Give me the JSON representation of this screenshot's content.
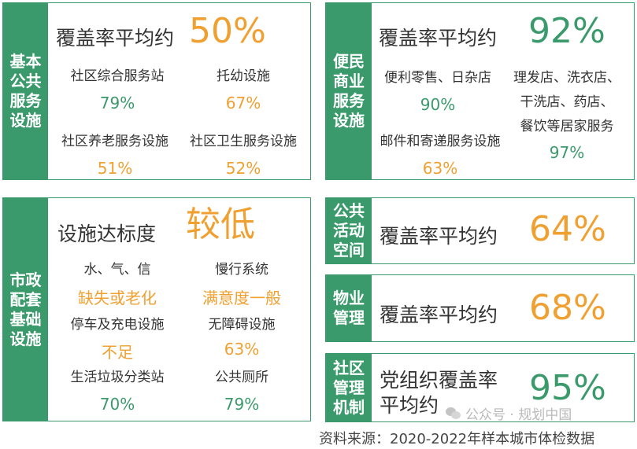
{
  "colors": {
    "green": "#3a9a6b",
    "orange": "#f0a030",
    "text": "#333333"
  },
  "basic": {
    "side": [
      "基本",
      "公共",
      "服务",
      "设施"
    ],
    "title": "覆盖率平均约",
    "value": "50%",
    "items": [
      {
        "label": "社区综合服务站",
        "value": "79%"
      },
      {
        "label": "托幼设施",
        "value": "67%"
      },
      {
        "label": "社区养老服务设施",
        "value": "51%"
      },
      {
        "label": "社区卫生服务设施",
        "value": "52%"
      }
    ]
  },
  "commerce": {
    "side": [
      "便民",
      "商业",
      "服务",
      "设施"
    ],
    "title": "覆盖率平均约",
    "value": "92%",
    "items": [
      {
        "label": "便利零售、日杂店",
        "value": "90%"
      },
      {
        "label_lines": [
          "理发店、洗衣店、",
          "干洗店、药店、",
          "餐饮等居家服务"
        ],
        "value": "97%"
      },
      {
        "label": "邮件和寄递服务设施",
        "value": "63%"
      }
    ]
  },
  "municipal": {
    "side": [
      "市政",
      "配套",
      "基础",
      "设施"
    ],
    "title": "设施达标度",
    "value": "较低",
    "items": [
      {
        "label": "水、气、信",
        "value": "缺失或老化"
      },
      {
        "label": "慢行系统",
        "value": "满意度一般"
      },
      {
        "label": "停车及充电设施",
        "value": "不足"
      },
      {
        "label": "无障碍设施",
        "value": "63%"
      },
      {
        "label": "生活垃圾分类站",
        "value": "70%"
      },
      {
        "label": "公共厕所",
        "value": "79%"
      }
    ]
  },
  "public_space": {
    "side": [
      "公共",
      "活动",
      "空间"
    ],
    "title": "覆盖率平均约",
    "value": "64%"
  },
  "property": {
    "side": [
      "物业",
      "管理"
    ],
    "title": "覆盖率平均约",
    "value": "68%"
  },
  "community": {
    "side": [
      "社区",
      "管理",
      "机制"
    ],
    "title_lines": [
      "党组织覆盖率",
      "平均约"
    ],
    "value": "95%"
  },
  "watermark": "公众号 · 规划中国",
  "footer": "资料来源：2020-2022年样本城市体检数据"
}
